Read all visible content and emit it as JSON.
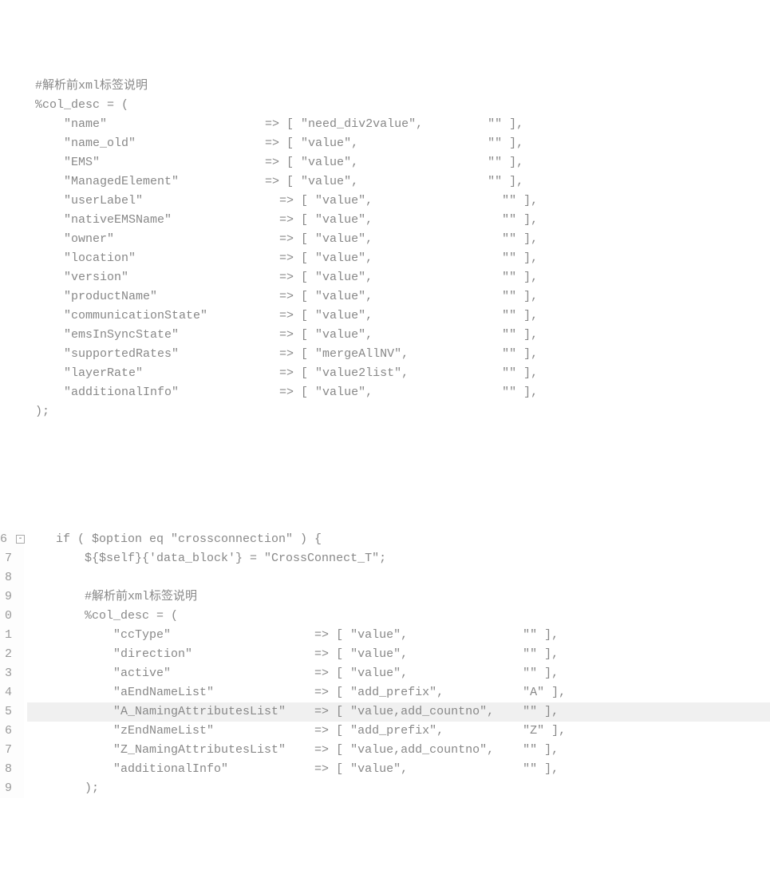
{
  "block1": {
    "comment": "#解析前xml标签说明",
    "decl": "%col_desc = (",
    "rows": [
      {
        "key": "\"name\"",
        "arrow": "=> [",
        "val": "\"need_div2value\",",
        "def": "\"\" ],",
        "indent": 0
      },
      {
        "key": "\"name_old\"",
        "arrow": "=> [",
        "val": "\"value\",",
        "def": "\"\" ],",
        "indent": 0
      },
      {
        "key": "\"EMS\"",
        "arrow": "=> [",
        "val": "\"value\",",
        "def": "\"\" ],",
        "indent": 0
      },
      {
        "key": "\"ManagedElement\"",
        "arrow": "=> [",
        "val": "\"value\",",
        "def": "\"\" ],",
        "indent": 0
      },
      {
        "key": "\"userLabel\"",
        "arrow": "=> [",
        "val": "\"value\",",
        "def": "\"\" ],",
        "indent": 1
      },
      {
        "key": "\"nativeEMSName\"",
        "arrow": "=> [",
        "val": "\"value\",",
        "def": "\"\" ],",
        "indent": 1
      },
      {
        "key": "\"owner\"",
        "arrow": "=> [",
        "val": "\"value\",",
        "def": "\"\" ],",
        "indent": 1
      },
      {
        "key": "\"location\"",
        "arrow": "=> [",
        "val": "\"value\",",
        "def": "\"\" ],",
        "indent": 1
      },
      {
        "key": "\"version\"",
        "arrow": "=> [",
        "val": "\"value\",",
        "def": "\"\" ],",
        "indent": 1
      },
      {
        "key": "\"productName\"",
        "arrow": "=> [",
        "val": "\"value\",",
        "def": "\"\" ],",
        "indent": 1
      },
      {
        "key": "\"communicationState\"",
        "arrow": "=> [",
        "val": "\"value\",",
        "def": "\"\" ],",
        "indent": 1
      },
      {
        "key": "\"emsInSyncState\"",
        "arrow": "=> [",
        "val": "\"value\",",
        "def": "\"\" ],",
        "indent": 1
      },
      {
        "key": "\"supportedRates\"",
        "arrow": "=> [",
        "val": "\"mergeAllNV\",",
        "def": "\"\" ],",
        "indent": 1
      },
      {
        "key": "\"layerRate\"",
        "arrow": "=> [",
        "val": "\"value2list\",",
        "def": "\"\" ],",
        "indent": 1
      },
      {
        "key": "\"additionalInfo\"",
        "arrow": "=> [",
        "val": "\"value\",",
        "def": "\"\" ],",
        "indent": 1
      }
    ],
    "close": ");"
  },
  "block2": {
    "lineNums": [
      "6",
      "7",
      "8",
      "9",
      "0",
      "1",
      "2",
      "3",
      "4",
      "5",
      "6",
      "7",
      "8",
      "9"
    ],
    "ifLine": "if ( $option eq \"crossconnection\" ) {",
    "assign": "${$self}{'data_block'} = \"CrossConnect_T\";",
    "comment": "#解析前xml标签说明",
    "decl": "%col_desc = (",
    "rows": [
      {
        "key": "\"ccType\"",
        "arrow": "=> [",
        "val": "\"value\",",
        "def": "\"\" ],",
        "hl": false
      },
      {
        "key": "\"direction\"",
        "arrow": "=> [",
        "val": "\"value\",",
        "def": "\"\" ],",
        "hl": false
      },
      {
        "key": "\"active\"",
        "arrow": "=> [",
        "val": "\"value\",",
        "def": "\"\" ],",
        "hl": false
      },
      {
        "key": "\"aEndNameList\"",
        "arrow": "=> [",
        "val": "\"add_prefix\",",
        "def": "\"A\" ],",
        "hl": false
      },
      {
        "key": "\"A_NamingAttributesList\"",
        "arrow": "=> [",
        "val": "\"value,add_countno\",",
        "def": "\"\" ],",
        "hl": true
      },
      {
        "key": "\"zEndNameList\"",
        "arrow": "=> [",
        "val": "\"add_prefix\",",
        "def": "\"Z\" ],",
        "hl": false
      },
      {
        "key": "\"Z_NamingAttributesList\"",
        "arrow": "=> [",
        "val": "\"value,add_countno\",",
        "def": "\"\" ],",
        "hl": false
      },
      {
        "key": "\"additionalInfo\"",
        "arrow": "=> [",
        "val": "\"value\",",
        "def": "\"\" ],",
        "hl": false
      }
    ],
    "close": ");"
  },
  "layout": {
    "keyColA0": 28,
    "keyColA1": 30,
    "valColA0": 26,
    "valColA1": 26,
    "keyColB": 28,
    "valColB": 24
  }
}
